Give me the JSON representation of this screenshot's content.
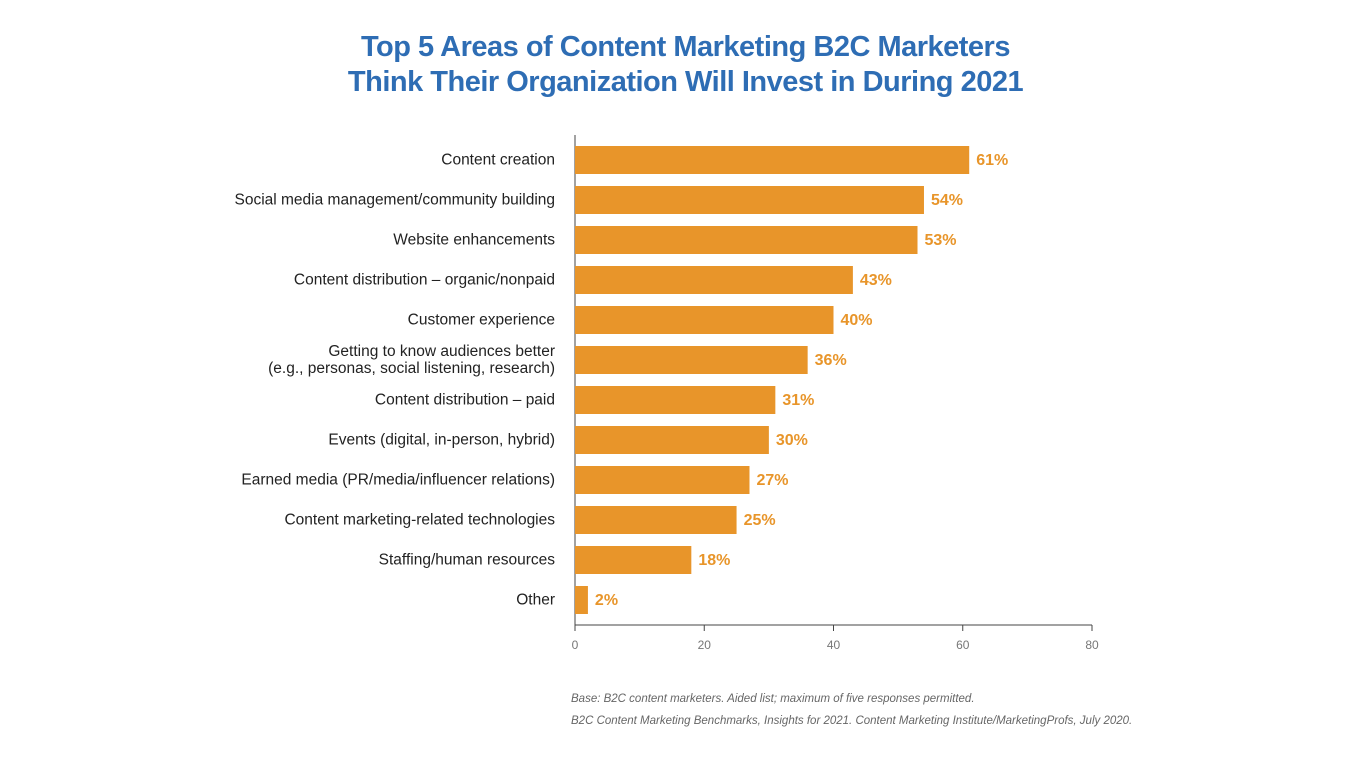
{
  "chart_data": {
    "type": "bar",
    "orientation": "horizontal",
    "title": "Top 5 Areas of Content Marketing B2C Marketers\nThink Their Organization Will Invest in During 2021",
    "categories": [
      "Content creation",
      "Social media management/community building",
      "Website enhancements",
      "Content distribution – organic/nonpaid",
      "Customer experience",
      "Getting to know audiences better\n(e.g., personas, social listening, research)",
      "Content distribution – paid",
      "Events (digital, in-person, hybrid)",
      "Earned media (PR/media/influencer relations)",
      "Content marketing-related technologies",
      "Staffing/human resources",
      "Other"
    ],
    "values": [
      61,
      54,
      53,
      43,
      40,
      36,
      31,
      30,
      27,
      25,
      18,
      2
    ],
    "value_labels": [
      "61%",
      "54%",
      "53%",
      "43%",
      "40%",
      "36%",
      "31%",
      "30%",
      "27%",
      "25%",
      "18%",
      "2%"
    ],
    "color": "#e8952a",
    "xlim": [
      0,
      80
    ],
    "xticks": [
      0,
      20,
      40,
      60,
      80
    ],
    "notes": [
      "Base: B2C content marketers. Aided list; maximum of five responses permitted.",
      "B2C Content Marketing Benchmarks, Insights for 2021. Content Marketing Institute/MarketingProfs, July 2020."
    ]
  }
}
